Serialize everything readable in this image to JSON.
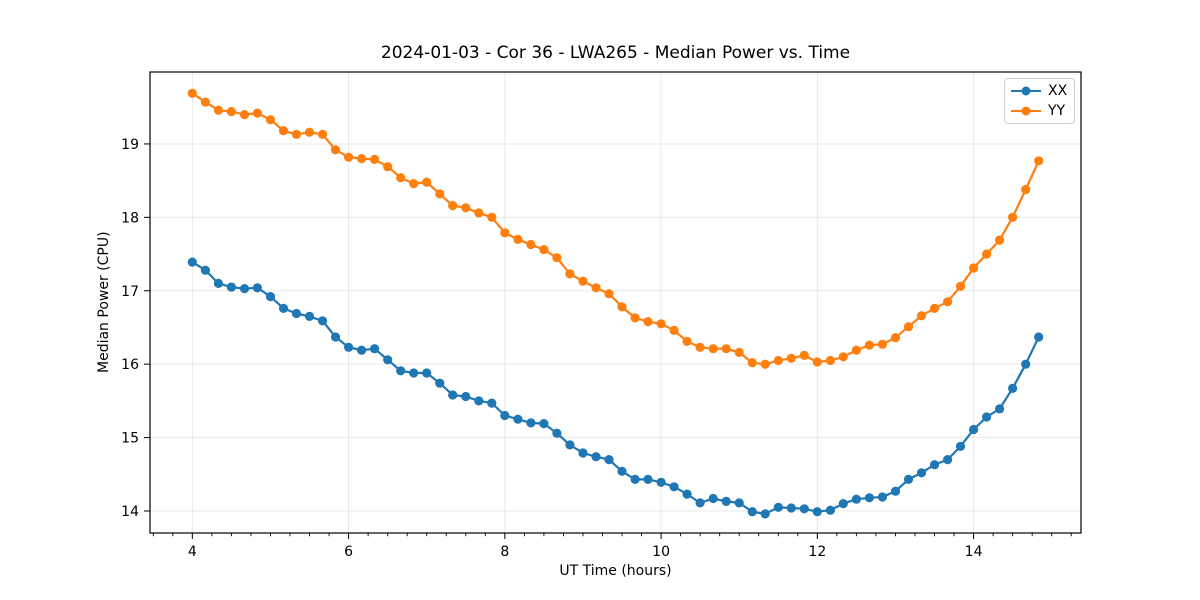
{
  "figure": {
    "background": "#ffffff",
    "text_color": "#000000",
    "grid_color": "#e8e8e8",
    "spine_color": "#000000",
    "legend_border_color": "#cccccc"
  },
  "chart_data": {
    "type": "line",
    "title": "2024-01-03 - Cor 36 - LWA265 - Median Power vs. Time",
    "xlabel": "UT Time (hours)",
    "ylabel": "Median Power (CPU)",
    "xlim": [
      3.458,
      15.375
    ],
    "ylim": [
      13.7,
      19.98
    ],
    "xticks": [
      4,
      6,
      8,
      10,
      12,
      14
    ],
    "yticks": [
      14,
      15,
      16,
      17,
      18,
      19
    ],
    "x_minor_step": 0.25,
    "grid": true,
    "legend_position": "upper right",
    "marker": "circle",
    "x": [
      4.0,
      4.167,
      4.333,
      4.5,
      4.667,
      4.833,
      5.0,
      5.167,
      5.333,
      5.5,
      5.667,
      5.833,
      6.0,
      6.167,
      6.333,
      6.5,
      6.667,
      6.833,
      7.0,
      7.167,
      7.333,
      7.5,
      7.667,
      7.833,
      8.0,
      8.167,
      8.333,
      8.5,
      8.667,
      8.833,
      9.0,
      9.167,
      9.333,
      9.5,
      9.667,
      9.833,
      10.0,
      10.167,
      10.333,
      10.5,
      10.667,
      10.833,
      11.0,
      11.167,
      11.333,
      11.5,
      11.667,
      11.833,
      12.0,
      12.167,
      12.333,
      12.5,
      12.667,
      12.833,
      13.0,
      13.167,
      13.333,
      13.5,
      13.667,
      13.833,
      14.0,
      14.167,
      14.333,
      14.5,
      14.667,
      14.833
    ],
    "series": [
      {
        "name": "XX",
        "color": "#1f77b4",
        "values": [
          17.39,
          17.28,
          17.1,
          17.05,
          17.03,
          17.04,
          16.92,
          16.76,
          16.69,
          16.65,
          16.59,
          16.37,
          16.23,
          16.19,
          16.21,
          16.06,
          15.91,
          15.88,
          15.88,
          15.74,
          15.58,
          15.56,
          15.5,
          15.47,
          15.3,
          15.25,
          15.2,
          15.19,
          15.06,
          14.9,
          14.79,
          14.74,
          14.7,
          14.54,
          14.43,
          14.43,
          14.39,
          14.33,
          14.23,
          14.11,
          14.17,
          14.13,
          14.11,
          13.99,
          13.96,
          14.05,
          14.04,
          14.03,
          13.99,
          14.01,
          14.1,
          14.16,
          14.18,
          14.19,
          14.27,
          14.43,
          14.52,
          14.63,
          14.7,
          14.88,
          15.11,
          15.28,
          15.39,
          15.67,
          16.0,
          16.37
        ]
      },
      {
        "name": "YY",
        "color": "#ff7f0e",
        "values": [
          19.69,
          19.57,
          19.46,
          19.44,
          19.4,
          19.42,
          19.33,
          19.18,
          19.13,
          19.16,
          19.13,
          18.92,
          18.82,
          18.8,
          18.79,
          18.69,
          18.54,
          18.46,
          18.48,
          18.32,
          18.16,
          18.13,
          18.06,
          18.0,
          17.79,
          17.7,
          17.63,
          17.56,
          17.45,
          17.23,
          17.13,
          17.04,
          16.96,
          16.78,
          16.63,
          16.58,
          16.55,
          16.46,
          16.31,
          16.23,
          16.21,
          16.21,
          16.16,
          16.02,
          16.0,
          16.05,
          16.08,
          16.12,
          16.03,
          16.05,
          16.1,
          16.19,
          16.26,
          16.27,
          16.36,
          16.51,
          16.66,
          16.76,
          16.85,
          17.06,
          17.31,
          17.5,
          17.69,
          18.0,
          18.38,
          18.77
        ]
      }
    ]
  }
}
